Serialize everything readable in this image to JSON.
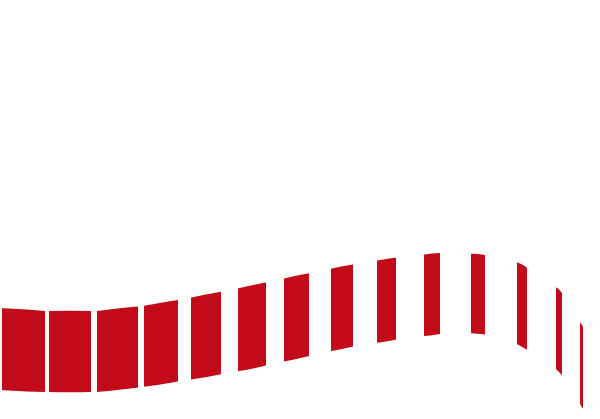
{
  "graphic": {
    "type": "wave-stripe-banner",
    "icon": "wavy-striped-ribbon-graphic",
    "stripe_color": "#c20a19",
    "background_color": "#ffffff",
    "stripe_count": 14
  }
}
